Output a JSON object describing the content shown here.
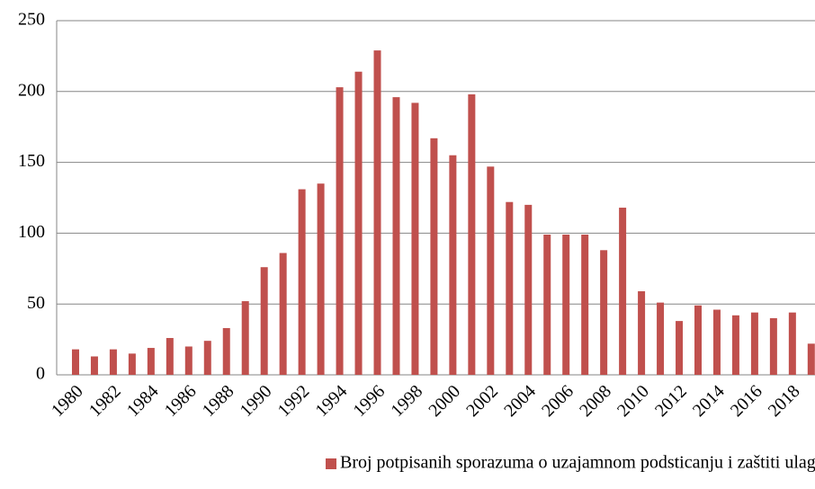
{
  "chart_data": {
    "type": "bar",
    "categories": [
      "1980",
      null,
      "1982",
      null,
      "1984",
      null,
      "1986",
      null,
      "1988",
      null,
      "1990",
      null,
      "1992",
      null,
      "1994",
      null,
      "1996",
      null,
      "1998",
      null,
      "2000",
      null,
      "2002",
      null,
      "2004",
      null,
      "2006",
      null,
      "2008",
      null,
      "2010",
      null,
      "2012",
      null,
      "2014",
      null,
      "2016",
      null,
      "2018",
      null
    ],
    "series": [
      {
        "name": "Broj potpisanih sporazuma o uzajamnom podsticanju i zaštiti ulaganja u svetu",
        "color": "#c0504d",
        "values": [
          18,
          13,
          18,
          15,
          19,
          26,
          20,
          24,
          33,
          52,
          76,
          86,
          131,
          135,
          203,
          214,
          229,
          196,
          192,
          167,
          155,
          198,
          147,
          122,
          120,
          99,
          99,
          99,
          88,
          118,
          59,
          51,
          38,
          49,
          46,
          42,
          44,
          40,
          44,
          22
        ]
      }
    ],
    "ylim": [
      0,
      250
    ],
    "yticks": [
      0,
      50,
      100,
      150,
      200,
      250
    ],
    "grid": true,
    "legend": "bottom"
  }
}
